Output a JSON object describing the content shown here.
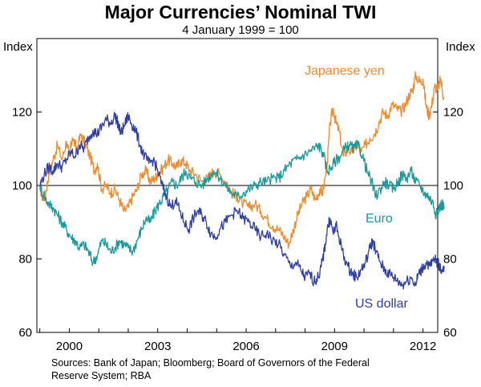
{
  "chart_data": {
    "type": "line",
    "title": "Major Currencies’ Nominal TWI",
    "subtitle": "4 January 1999 = 100",
    "ylabel_left": "Index",
    "ylabel_right": "Index",
    "ylim": [
      60,
      140
    ],
    "yticks": [
      60,
      80,
      100,
      120
    ],
    "xlim": [
      1998.9,
      2012.5
    ],
    "xticks": [
      2000,
      2003,
      2006,
      2009,
      2012
    ],
    "xtick_labels": [
      "2000",
      "2003",
      "2006",
      "2009",
      "2012"
    ],
    "reference_line": 100,
    "source": "Sources: Bank of Japan; Bloomberg; Board of Governors of the Federal Reserve System; RBA",
    "series": [
      {
        "name": "Japanese yen",
        "color": "#f08a2c",
        "points": [
          [
            1999.0,
            100
          ],
          [
            1999.1,
            96
          ],
          [
            1999.2,
            98
          ],
          [
            1999.3,
            103
          ],
          [
            1999.45,
            107
          ],
          [
            1999.6,
            111
          ],
          [
            1999.75,
            107
          ],
          [
            1999.9,
            112
          ],
          [
            2000.0,
            108
          ],
          [
            2000.1,
            113
          ],
          [
            2000.25,
            110
          ],
          [
            2000.4,
            114
          ],
          [
            2000.55,
            111
          ],
          [
            2000.7,
            108
          ],
          [
            2000.85,
            104
          ],
          [
            2000.95,
            106
          ],
          [
            2001.1,
            99
          ],
          [
            2001.25,
            100
          ],
          [
            2001.4,
            98
          ],
          [
            2001.55,
            99
          ],
          [
            2001.7,
            96
          ],
          [
            2001.85,
            93
          ],
          [
            2002.0,
            94
          ],
          [
            2002.15,
            97
          ],
          [
            2002.3,
            99
          ],
          [
            2002.45,
            103
          ],
          [
            2002.6,
            104
          ],
          [
            2002.75,
            101
          ],
          [
            2002.9,
            102
          ],
          [
            2003.0,
            103
          ],
          [
            2003.2,
            105
          ],
          [
            2003.35,
            107
          ],
          [
            2003.5,
            106
          ],
          [
            2003.65,
            105
          ],
          [
            2003.8,
            107
          ],
          [
            2003.95,
            106
          ],
          [
            2004.1,
            104
          ],
          [
            2004.3,
            103
          ],
          [
            2004.5,
            101
          ],
          [
            2004.7,
            102
          ],
          [
            2004.9,
            104
          ],
          [
            2005.1,
            103
          ],
          [
            2005.3,
            101
          ],
          [
            2005.5,
            98
          ],
          [
            2005.7,
            97
          ],
          [
            2005.9,
            95
          ],
          [
            2006.1,
            94
          ],
          [
            2006.3,
            95
          ],
          [
            2006.5,
            93
          ],
          [
            2006.7,
            91
          ],
          [
            2006.9,
            89
          ],
          [
            2007.1,
            88
          ],
          [
            2007.3,
            86
          ],
          [
            2007.45,
            84
          ],
          [
            2007.6,
            88
          ],
          [
            2007.75,
            92
          ],
          [
            2007.9,
            95
          ],
          [
            2008.05,
            97
          ],
          [
            2008.2,
            99
          ],
          [
            2008.35,
            96
          ],
          [
            2008.5,
            99
          ],
          [
            2008.6,
            98
          ],
          [
            2008.75,
            106
          ],
          [
            2008.85,
            117
          ],
          [
            2008.95,
            121
          ],
          [
            2009.05,
            117
          ],
          [
            2009.15,
            115
          ],
          [
            2009.3,
            108
          ],
          [
            2009.45,
            110
          ],
          [
            2009.6,
            109
          ],
          [
            2009.75,
            111
          ],
          [
            2009.9,
            109
          ],
          [
            2010.05,
            111
          ],
          [
            2010.2,
            113
          ],
          [
            2010.35,
            114
          ],
          [
            2010.5,
            117
          ],
          [
            2010.65,
            120
          ],
          [
            2010.8,
            119
          ],
          [
            2010.95,
            122
          ],
          [
            2011.1,
            121
          ],
          [
            2011.25,
            120
          ],
          [
            2011.4,
            122
          ],
          [
            2011.55,
            125
          ],
          [
            2011.65,
            126
          ],
          [
            2011.75,
            130
          ],
          [
            2011.9,
            128
          ],
          [
            2012.0,
            129
          ],
          [
            2012.1,
            122
          ],
          [
            2012.2,
            119
          ],
          [
            2012.3,
            122
          ],
          [
            2012.4,
            127
          ],
          [
            2012.5,
            126
          ],
          [
            2012.6,
            129
          ],
          [
            2012.7,
            124
          ]
        ]
      },
      {
        "name": "Euro",
        "color": "#1a9a9a",
        "points": [
          [
            1999.0,
            100
          ],
          [
            1999.15,
            97
          ],
          [
            1999.3,
            95
          ],
          [
            1999.45,
            94
          ],
          [
            1999.6,
            92
          ],
          [
            1999.75,
            90
          ],
          [
            1999.9,
            88
          ],
          [
            2000.05,
            86
          ],
          [
            2000.2,
            85
          ],
          [
            2000.35,
            83
          ],
          [
            2000.5,
            84
          ],
          [
            2000.65,
            82
          ],
          [
            2000.8,
            79
          ],
          [
            2000.95,
            81
          ],
          [
            2001.1,
            85
          ],
          [
            2001.25,
            84
          ],
          [
            2001.4,
            82
          ],
          [
            2001.55,
            83
          ],
          [
            2001.7,
            85
          ],
          [
            2001.85,
            84
          ],
          [
            2002.0,
            83
          ],
          [
            2002.15,
            82
          ],
          [
            2002.3,
            85
          ],
          [
            2002.45,
            88
          ],
          [
            2002.6,
            91
          ],
          [
            2002.75,
            90
          ],
          [
            2002.9,
            93
          ],
          [
            2003.05,
            95
          ],
          [
            2003.2,
            97
          ],
          [
            2003.35,
            99
          ],
          [
            2003.5,
            101
          ],
          [
            2003.65,
            100
          ],
          [
            2003.8,
            102
          ],
          [
            2003.95,
            104
          ],
          [
            2004.1,
            102
          ],
          [
            2004.3,
            101
          ],
          [
            2004.5,
            100
          ],
          [
            2004.7,
            102
          ],
          [
            2004.9,
            104
          ],
          [
            2005.1,
            102
          ],
          [
            2005.3,
            100
          ],
          [
            2005.5,
            98
          ],
          [
            2005.7,
            97
          ],
          [
            2005.9,
            98
          ],
          [
            2006.1,
            99
          ],
          [
            2006.3,
            100
          ],
          [
            2006.5,
            101
          ],
          [
            2006.7,
            101
          ],
          [
            2006.9,
            102
          ],
          [
            2007.1,
            102
          ],
          [
            2007.3,
            104
          ],
          [
            2007.5,
            106
          ],
          [
            2007.7,
            107
          ],
          [
            2007.9,
            108
          ],
          [
            2008.1,
            109
          ],
          [
            2008.3,
            110
          ],
          [
            2008.45,
            111
          ],
          [
            2008.6,
            109
          ],
          [
            2008.75,
            104
          ],
          [
            2008.9,
            105
          ],
          [
            2009.05,
            107
          ],
          [
            2009.2,
            108
          ],
          [
            2009.35,
            110
          ],
          [
            2009.5,
            111
          ],
          [
            2009.65,
            110
          ],
          [
            2009.8,
            111
          ],
          [
            2009.95,
            108
          ],
          [
            2010.1,
            104
          ],
          [
            2010.25,
            101
          ],
          [
            2010.4,
            97
          ],
          [
            2010.55,
            99
          ],
          [
            2010.7,
            101
          ],
          [
            2010.85,
            100
          ],
          [
            2011.0,
            99
          ],
          [
            2011.15,
            101
          ],
          [
            2011.3,
            103
          ],
          [
            2011.45,
            102
          ],
          [
            2011.6,
            104
          ],
          [
            2011.75,
            101
          ],
          [
            2011.9,
            100
          ],
          [
            2012.05,
            98
          ],
          [
            2012.2,
            97
          ],
          [
            2012.35,
            95
          ],
          [
            2012.45,
            92
          ],
          [
            2012.55,
            94
          ],
          [
            2012.65,
            95
          ],
          [
            2012.72,
            94
          ]
        ]
      },
      {
        "name": "US dollar",
        "color": "#2f3ea8",
        "points": [
          [
            1999.0,
            100
          ],
          [
            1999.15,
            103
          ],
          [
            1999.3,
            105
          ],
          [
            1999.45,
            104
          ],
          [
            1999.6,
            106
          ],
          [
            1999.75,
            105
          ],
          [
            1999.9,
            107
          ],
          [
            2000.05,
            109
          ],
          [
            2000.2,
            108
          ],
          [
            2000.35,
            111
          ],
          [
            2000.5,
            110
          ],
          [
            2000.65,
            113
          ],
          [
            2000.8,
            115
          ],
          [
            2000.95,
            114
          ],
          [
            2001.1,
            116
          ],
          [
            2001.25,
            118
          ],
          [
            2001.4,
            117
          ],
          [
            2001.55,
            119
          ],
          [
            2001.65,
            117
          ],
          [
            2001.75,
            114
          ],
          [
            2001.85,
            116
          ],
          [
            2002.0,
            119
          ],
          [
            2002.1,
            117
          ],
          [
            2002.25,
            115
          ],
          [
            2002.4,
            111
          ],
          [
            2002.55,
            108
          ],
          [
            2002.7,
            106
          ],
          [
            2002.85,
            107
          ],
          [
            2003.0,
            104
          ],
          [
            2003.15,
            100
          ],
          [
            2003.3,
            97
          ],
          [
            2003.45,
            94
          ],
          [
            2003.6,
            96
          ],
          [
            2003.75,
            93
          ],
          [
            2003.9,
            90
          ],
          [
            2004.05,
            88
          ],
          [
            2004.2,
            91
          ],
          [
            2004.35,
            93
          ],
          [
            2004.5,
            92
          ],
          [
            2004.65,
            90
          ],
          [
            2004.8,
            87
          ],
          [
            2004.95,
            86
          ],
          [
            2005.1,
            88
          ],
          [
            2005.3,
            90
          ],
          [
            2005.5,
            92
          ],
          [
            2005.7,
            93
          ],
          [
            2005.9,
            91
          ],
          [
            2006.1,
            90
          ],
          [
            2006.3,
            88
          ],
          [
            2006.5,
            86
          ],
          [
            2006.7,
            87
          ],
          [
            2006.9,
            85
          ],
          [
            2007.1,
            84
          ],
          [
            2007.3,
            81
          ],
          [
            2007.5,
            78
          ],
          [
            2007.7,
            79
          ],
          [
            2007.85,
            77
          ],
          [
            2008.0,
            75
          ],
          [
            2008.15,
            76
          ],
          [
            2008.3,
            74
          ],
          [
            2008.45,
            75
          ],
          [
            2008.55,
            78
          ],
          [
            2008.65,
            82
          ],
          [
            2008.75,
            88
          ],
          [
            2008.85,
            91
          ],
          [
            2008.95,
            87
          ],
          [
            2009.05,
            89
          ],
          [
            2009.15,
            86
          ],
          [
            2009.3,
            81
          ],
          [
            2009.45,
            78
          ],
          [
            2009.6,
            76
          ],
          [
            2009.75,
            75
          ],
          [
            2009.9,
            77
          ],
          [
            2010.05,
            79
          ],
          [
            2010.2,
            83
          ],
          [
            2010.3,
            85
          ],
          [
            2010.4,
            82
          ],
          [
            2010.55,
            79
          ],
          [
            2010.7,
            77
          ],
          [
            2010.85,
            76
          ],
          [
            2011.0,
            75
          ],
          [
            2011.15,
            74
          ],
          [
            2011.3,
            73
          ],
          [
            2011.45,
            74
          ],
          [
            2011.6,
            75
          ],
          [
            2011.75,
            73
          ],
          [
            2011.85,
            76
          ],
          [
            2011.95,
            77
          ],
          [
            2012.1,
            79
          ],
          [
            2012.25,
            78
          ],
          [
            2012.4,
            80
          ],
          [
            2012.5,
            79
          ],
          [
            2012.6,
            77
          ],
          [
            2012.72,
            78
          ]
        ]
      }
    ],
    "labels": [
      {
        "text": "Japanese yen",
        "series": 0
      },
      {
        "text": "Euro",
        "series": 1
      },
      {
        "text": "US dollar",
        "series": 2
      }
    ]
  }
}
